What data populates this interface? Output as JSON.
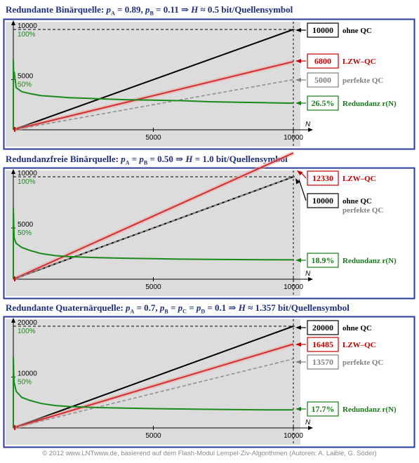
{
  "panels": [
    {
      "title_parts": [
        "Redundante Binärquelle: ",
        "p",
        "A",
        " =  0.89,  ",
        "p",
        "B",
        " =  0.11  ⇒  ",
        "H",
        " ≈ 0.5 bit/Quellensymbol"
      ],
      "ytick_top": "10000",
      "ytick_mid": "5000",
      "pct_top": "100%",
      "pct_mid": "50%",
      "xtick_mid": "5000",
      "xtick_end": "10000",
      "xaxis": "N",
      "labels": [
        {
          "value": "10000",
          "text": "ohne QC",
          "color": "#000000"
        },
        {
          "value": "6800",
          "text": "LZW–QC",
          "color": "#c00000"
        },
        {
          "value": "5000",
          "text": "perfekte QC",
          "color": "#808080"
        },
        {
          "value": "26.5%",
          "text": "Redundanz r(N)",
          "color": "#1a7a1a"
        }
      ]
    },
    {
      "title_parts": [
        "Redundanzfreie Binärquelle: ",
        "p",
        "A",
        " =  ",
        "p",
        "B",
        " =  0.50  ⇒  ",
        "H",
        " = 1.0 bit/Quellensymbol"
      ],
      "ytick_top": "10000",
      "ytick_mid": "5000",
      "pct_top": "100%",
      "pct_mid": "50%",
      "xtick_mid": "5000",
      "xtick_end": "10000",
      "xaxis": "N",
      "labels": [
        {
          "value": "12330",
          "text": "LZW–QC",
          "color": "#c00000"
        },
        {
          "value": "10000",
          "text": "ohne QC",
          "color": "#000000"
        },
        {
          "value": "",
          "text": "perfekte QC",
          "color": "#808080"
        },
        {
          "value": "18.9%",
          "text": "Redundanz r(N)",
          "color": "#1a7a1a"
        }
      ]
    },
    {
      "title_parts": [
        "Redundante Quaternärquelle: ",
        "p",
        "A",
        " =  0.7,  ",
        "p",
        "B",
        " = ",
        "p",
        "C",
        " = ",
        "p",
        "D",
        " = 0.1  ⇒  ",
        "H",
        " ≈ 1.357 bit/Quellensymbol"
      ],
      "ytick_top": "20000",
      "ytick_mid": "10000",
      "pct_top": "100%",
      "pct_mid": "50%",
      "xtick_mid": "5000",
      "xtick_end": "10000",
      "xaxis": "N",
      "labels": [
        {
          "value": "20000",
          "text": "ohne QC",
          "color": "#000000"
        },
        {
          "value": "16485",
          "text": "LZW–QC",
          "color": "#c00000"
        },
        {
          "value": "13570",
          "text": "perfekte QC",
          "color": "#808080"
        },
        {
          "value": "17.7%",
          "text": "Redundanz r(N)",
          "color": "#1a7a1a"
        }
      ]
    }
  ],
  "chart_data": [
    {
      "type": "line",
      "title": "Redundante Binärquelle: pA = 0.89, pB = 0.11 ⇒ H ≈ 0.5 bit/Quellensymbol",
      "xlabel": "N",
      "xlim": [
        0,
        10000
      ],
      "ylim": [
        0,
        10000
      ],
      "series": [
        {
          "name": "ohne QC",
          "x": [
            0,
            10000
          ],
          "values": [
            0,
            10000
          ],
          "color": "#000000"
        },
        {
          "name": "LZW–QC",
          "x": [
            0,
            10000
          ],
          "values": [
            0,
            6800
          ],
          "color": "#d03030"
        },
        {
          "name": "perfekte QC",
          "x": [
            0,
            10000
          ],
          "values": [
            0,
            5000
          ],
          "color": "#909090"
        },
        {
          "name": "Redundanz r(N)",
          "x": [
            30,
            100,
            300,
            600,
            1000,
            1500,
            2000,
            3000,
            4000,
            5000,
            6000,
            7000,
            8000,
            9000,
            10000
          ],
          "values": [
            58,
            42,
            38,
            36,
            34,
            33,
            32,
            31,
            30,
            29.5,
            29,
            28,
            27.5,
            27,
            26.5
          ],
          "color": "#1a8a1a"
        }
      ]
    },
    {
      "type": "line",
      "title": "Redundanzfreie Binärquelle: pA = pB = 0.50 ⇒ H = 1.0 bit/Quellensymbol",
      "xlabel": "N",
      "xlim": [
        0,
        10000
      ],
      "ylim": [
        0,
        10000
      ],
      "series": [
        {
          "name": "ohne QC",
          "x": [
            0,
            10000
          ],
          "values": [
            0,
            10000
          ],
          "color": "#000000"
        },
        {
          "name": "LZW–QC",
          "x": [
            0,
            10000
          ],
          "values": [
            0,
            12330
          ],
          "color": "#d03030"
        },
        {
          "name": "perfekte QC",
          "x": [
            0,
            10000
          ],
          "values": [
            0,
            10000
          ],
          "color": "#909090"
        },
        {
          "name": "Redundanz r(N)",
          "x": [
            30,
            100,
            300,
            600,
            1000,
            1500,
            2000,
            3000,
            4000,
            5000,
            6000,
            7000,
            8000,
            9000,
            10000
          ],
          "values": [
            40,
            35,
            31,
            28,
            25,
            23,
            22,
            21,
            20.5,
            20,
            19.6,
            19.4,
            19.2,
            19,
            18.9
          ],
          "color": "#1a8a1a"
        }
      ]
    },
    {
      "type": "line",
      "title": "Redundante Quaternärquelle: pA = 0.7, pB = pC = pD = 0.1 ⇒ H ≈ 1.357 bit/Quellensymbol",
      "xlabel": "N",
      "xlim": [
        0,
        10000
      ],
      "ylim": [
        0,
        20000
      ],
      "series": [
        {
          "name": "ohne QC",
          "x": [
            0,
            10000
          ],
          "values": [
            0,
            20000
          ],
          "color": "#000000"
        },
        {
          "name": "LZW–QC",
          "x": [
            0,
            10000
          ],
          "values": [
            0,
            16485
          ],
          "color": "#d03030"
        },
        {
          "name": "perfekte QC",
          "x": [
            0,
            10000
          ],
          "values": [
            0,
            13570
          ],
          "color": "#909090"
        },
        {
          "name": "Redundanz r(N)",
          "x": [
            30,
            100,
            300,
            600,
            1000,
            1500,
            2000,
            3000,
            4000,
            5000,
            6000,
            7000,
            8000,
            9000,
            10000
          ],
          "values": [
            45,
            36,
            30,
            27,
            24,
            22,
            21,
            20,
            19.5,
            19,
            18.6,
            18.3,
            18,
            17.8,
            17.7
          ],
          "color": "#1a8a1a"
        }
      ]
    }
  ],
  "footer": "© 2012 www.LNTwww.de, basierend auf dem Flash-Modul Lempel-Ziv-Algorithmen (Autoren: A. Laible, G. Söder)"
}
